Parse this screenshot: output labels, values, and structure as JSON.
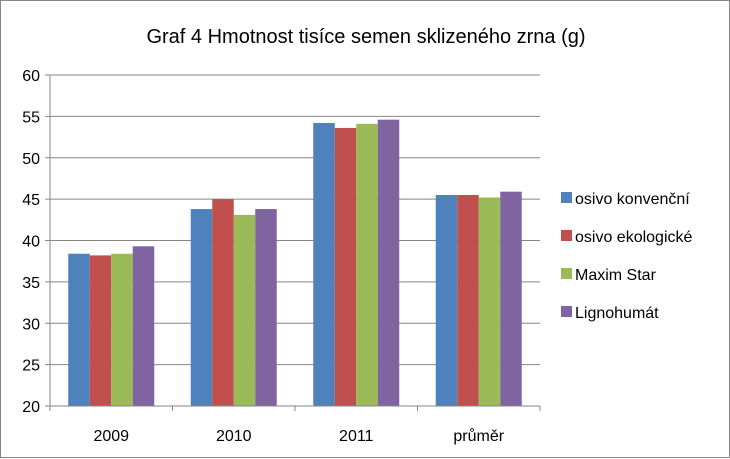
{
  "chart_data": {
    "type": "bar",
    "title": "Graf 4 Hmotnost tisíce semen sklizeného zrna (g)",
    "xlabel": "",
    "ylabel": "",
    "categories": [
      "2009",
      "2010",
      "2011",
      "průměr"
    ],
    "ylim": [
      20,
      60
    ],
    "yticks": [
      20,
      25,
      30,
      35,
      40,
      45,
      50,
      55,
      60
    ],
    "grid": true,
    "legend_position": "right",
    "series": [
      {
        "name": "osivo konvenční",
        "color": "#4F81BD",
        "values": [
          38.4,
          43.8,
          54.2,
          45.5
        ]
      },
      {
        "name": "osivo ekologické",
        "color": "#C0504D",
        "values": [
          38.2,
          45.0,
          53.6,
          45.5
        ]
      },
      {
        "name": "Maxim Star",
        "color": "#9BBB59",
        "values": [
          38.4,
          43.1,
          54.1,
          45.2
        ]
      },
      {
        "name": "Lignohumát",
        "color": "#8064A2",
        "values": [
          39.3,
          43.8,
          54.6,
          45.9
        ]
      }
    ]
  }
}
